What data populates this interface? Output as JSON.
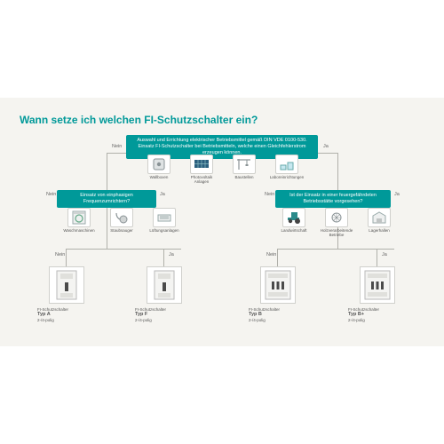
{
  "title": "Wann setze ich welchen FI-Schutzschalter ein?",
  "colors": {
    "accent": "#009999",
    "bg": "#f5f4f0",
    "line": "#b0b0aa",
    "text_muted": "#666666"
  },
  "labels": {
    "yes": "Ja",
    "no": "Nein"
  },
  "questions": {
    "top": "Auswahl und Errichtung elektrischer Betriebsmittel gemäß DIN VDE 0100-530. Einsatz FI-Schutzschalter bei Betriebsmitteln, welche einen Gleichfehlerstrom erzeugen können.",
    "left": "Einsatz von einphasigen Frequenzumrichtern?",
    "right": "Ist der Einsatz in einer feuergefährdeten Betriebsstätte vorgesehen?"
  },
  "icon_rows": {
    "top": [
      {
        "name": "wallbox-icon",
        "label": "Wallboxen"
      },
      {
        "name": "pv-icon",
        "label": "Photovoltaik Anlagen"
      },
      {
        "name": "crane-icon",
        "label": "Baustellen"
      },
      {
        "name": "lab-icon",
        "label": "Laboreinrichtungen"
      }
    ],
    "left": [
      {
        "name": "washer-icon",
        "label": "Waschmaschinen"
      },
      {
        "name": "vacuum-icon",
        "label": "Staubsauger"
      },
      {
        "name": "hvac-icon",
        "label": "Lüftungsanlagen"
      }
    ],
    "right": [
      {
        "name": "tractor-icon",
        "label": "Landwirtschaft"
      },
      {
        "name": "wood-icon",
        "label": "Holzverarbeitende Betriebe"
      },
      {
        "name": "warehouse-icon",
        "label": "Lagerhallen"
      }
    ]
  },
  "results": [
    {
      "pre": "FI-Schutzschalter",
      "typ": "Typ A",
      "poles": "2-/4-polig"
    },
    {
      "pre": "FI-Schutzschalter",
      "typ": "Typ F",
      "poles": "2-/4-polig"
    },
    {
      "pre": "FI-Schutzschalter",
      "typ": "Typ B",
      "poles": "2-/4-polig"
    },
    {
      "pre": "FI-Schutzschalter",
      "typ": "Typ B+",
      "poles": "2-/4-polig"
    }
  ]
}
